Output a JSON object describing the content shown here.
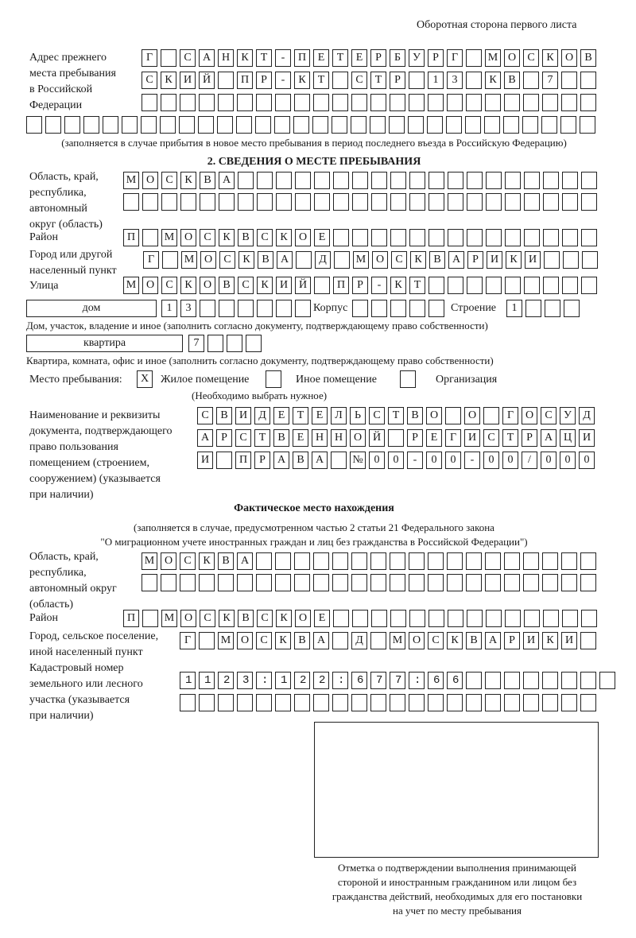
{
  "header": {
    "page_side": "Оборотная сторона первого листа"
  },
  "previous_address": {
    "label": [
      "Адрес прежнего",
      "места пребывания",
      "в Российской",
      "Федерации"
    ],
    "rows": [
      "Г САНКТ-ПЕТЕРБУРГ МОСКОВ",
      "СКИЙ ПР-КТ СТР 13 КВ 7  ",
      "                        ",
      "                              "
    ],
    "note": "(заполняется в случае прибытия в новое место пребывания в период последнего въезда в Российскую Федерацию)"
  },
  "section2": {
    "title": "2. СВЕДЕНИЯ О МЕСТЕ ПРЕБЫВАНИЯ",
    "region_label": [
      "Область, край,",
      "республика,",
      "автономный",
      "округ (область)"
    ],
    "region_rows": [
      "МОСКВА                   ",
      "                         "
    ],
    "district_label": "Район",
    "district_row": "П МОСКВСКОЕ              ",
    "city_label": [
      "Город или другой",
      "населенный пункт"
    ],
    "city_row": "Г МОСКВА Д МОСКВАРИКИ   ",
    "street_label": "Улица",
    "street_row": "МОСКОВСКИЙ ПР-КТ         ",
    "house_type": "дом",
    "house_row": "13      ",
    "korpus_label": "Корпус",
    "korpus_row": "     ",
    "building_label": "Строение",
    "building_row": "1   ",
    "house_note": "Дом, участок, владение и иное (заполнить согласно документу, подтверждающему право собственности)",
    "apartment_type": "квартира",
    "apartment_row": "7   ",
    "apartment_note": "Квартира, комната, офис и иное (заполнить согласно документу, подтверждающему право собственности)",
    "stay_place_label": "Место пребывания:",
    "stay_options": [
      {
        "label": "Жилое помещение",
        "mark": "X"
      },
      {
        "label": "Иное помещение",
        "mark": ""
      },
      {
        "label": "Организация",
        "mark": ""
      }
    ],
    "choose_note": "(Необходимо выбрать нужное)",
    "document_label": [
      "Наименование и реквизиты",
      "документа, подтверждающего",
      "право пользования",
      "помещением (строением,",
      "сооружением) (указывается",
      "при наличии)"
    ],
    "document_rows": [
      "СВИДЕТЕЛЬСТВО О ГОСУД",
      "АРСТВЕННОЙ РЕГИСТРАЦИ",
      "И ПРАВА №00-00-00/000"
    ]
  },
  "actual_location": {
    "title": "Фактическое место нахождения",
    "note": [
      "(заполняется в случае, предусмотренном частью 2 статьи 21 Федерального закона",
      "\"О миграционном учете иностранных граждан и лиц без гражданства в Российской Федерации\")"
    ],
    "region_label": [
      "Область, край,",
      "республика,",
      "автономный округ",
      "(область)"
    ],
    "region_rows": [
      "МОСКВА                  ",
      "                        "
    ],
    "district_label": "Район",
    "district_row": "П МОСКВСКОЕ              ",
    "city_label": [
      "Город, сельское поселение,",
      "иной населенный пункт"
    ],
    "city_row": "Г МОСКВА Д МОСКВАРИКИ ",
    "cadastral_label": [
      "Кадастровый номер",
      "земельного или лесного",
      "участка (указывается",
      "при наличии)"
    ],
    "cadastral_rows": [
      "1123:122:677:66        ",
      "                      "
    ]
  },
  "confirmation": {
    "caption": [
      "Отметка о подтверждении выполнения принимающей",
      "стороной и иностранным гражданином или лицом без",
      "гражданства действий, необходимых для его постановки",
      "на учет по месту пребывания"
    ]
  }
}
